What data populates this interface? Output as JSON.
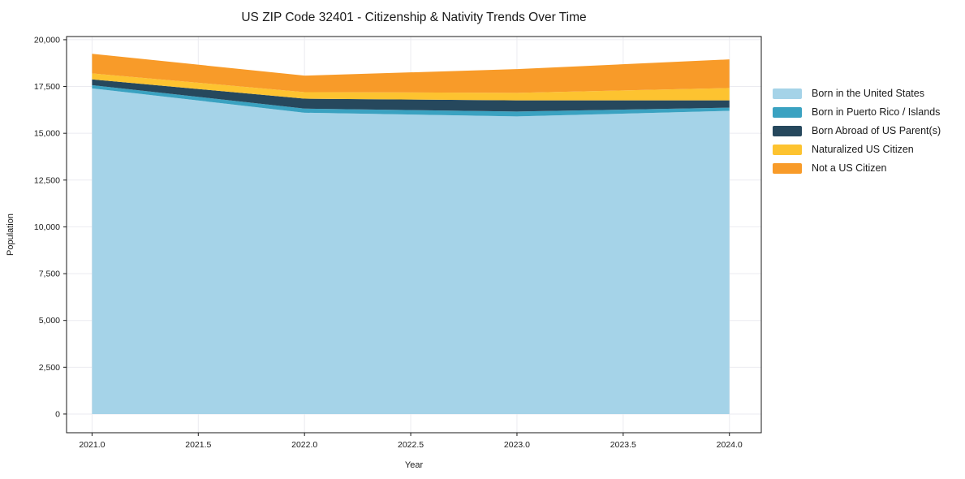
{
  "title": "US ZIP Code 32401 - Citizenship & Nativity Trends Over Time",
  "chart_data": {
    "type": "area",
    "stacked": true,
    "title": "US ZIP Code 32401 - Citizenship & Nativity Trends Over Time",
    "xlabel": "Year",
    "ylabel": "Population",
    "grid": true,
    "legend_position": "outside-right",
    "x": [
      2021,
      2022,
      2023,
      2024
    ],
    "series": [
      {
        "name": "Born in the United States",
        "color": "#a5d3e8",
        "values": [
          17400,
          16100,
          15900,
          16200
        ]
      },
      {
        "name": "Born in Puerto Rico / Islands",
        "color": "#3aa2c1",
        "values": [
          170,
          220,
          260,
          170
        ]
      },
      {
        "name": "Born Abroad of US Parent(s)",
        "color": "#26485d",
        "values": [
          310,
          530,
          600,
          390
        ]
      },
      {
        "name": "Naturalized US Citizen",
        "color": "#fdc330",
        "values": [
          320,
          350,
          400,
          660
        ]
      },
      {
        "name": "Not a US Citizen",
        "color": "#f89b29",
        "values": [
          1050,
          880,
          1270,
          1530
        ]
      }
    ],
    "x_ticks": [
      {
        "value": 2021.0,
        "label": "2021.0"
      },
      {
        "value": 2021.5,
        "label": "2021.5"
      },
      {
        "value": 2022.0,
        "label": "2022.0"
      },
      {
        "value": 2022.5,
        "label": "2022.5"
      },
      {
        "value": 2023.0,
        "label": "2023.0"
      },
      {
        "value": 2023.5,
        "label": "2023.5"
      },
      {
        "value": 2024.0,
        "label": "2024.0"
      }
    ],
    "y_ticks": [
      {
        "value": 0,
        "label": "0"
      },
      {
        "value": 2500,
        "label": "2,500"
      },
      {
        "value": 5000,
        "label": "5,000"
      },
      {
        "value": 7500,
        "label": "7,500"
      },
      {
        "value": 10000,
        "label": "10,000"
      },
      {
        "value": 12500,
        "label": "12,500"
      },
      {
        "value": 15000,
        "label": "15,000"
      },
      {
        "value": 17500,
        "label": "17,500"
      },
      {
        "value": 20000,
        "label": "20,000"
      }
    ],
    "xlim": [
      2020.88,
      2024.15
    ],
    "ylim": [
      -1000,
      20170
    ]
  },
  "colors": {
    "grid": "#ebebf0",
    "spine": "#1a1a1a",
    "text": "#1a1a1a",
    "plot_background": "#ffffff"
  }
}
